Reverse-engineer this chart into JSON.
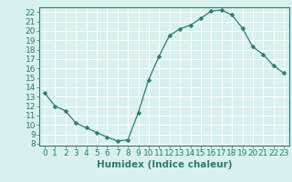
{
  "x": [
    0,
    1,
    2,
    3,
    4,
    5,
    6,
    7,
    8,
    9,
    10,
    11,
    12,
    13,
    14,
    15,
    16,
    17,
    18,
    19,
    20,
    21,
    22,
    23
  ],
  "y": [
    13.4,
    12.0,
    11.5,
    10.2,
    9.7,
    9.2,
    8.7,
    8.3,
    8.4,
    11.3,
    14.8,
    17.3,
    19.5,
    20.2,
    20.6,
    21.3,
    22.1,
    22.2,
    21.7,
    20.3,
    18.3,
    17.5,
    16.3,
    15.5
  ],
  "line_color": "#2e7d6e",
  "marker": "D",
  "marker_size": 2.5,
  "bg_color": "#d8f0ee",
  "grid_color": "#ffffff",
  "xlabel": "Humidex (Indice chaleur)",
  "xlim": [
    -0.5,
    23.5
  ],
  "ylim": [
    7.8,
    22.5
  ],
  "yticks": [
    8,
    9,
    10,
    11,
    12,
    13,
    14,
    15,
    16,
    17,
    18,
    19,
    20,
    21,
    22
  ],
  "xticks": [
    0,
    1,
    2,
    3,
    4,
    5,
    6,
    7,
    8,
    9,
    10,
    11,
    12,
    13,
    14,
    15,
    16,
    17,
    18,
    19,
    20,
    21,
    22,
    23
  ],
  "tick_color": "#2e7d6e",
  "label_fontsize": 6.5,
  "xlabel_fontsize": 7.5
}
